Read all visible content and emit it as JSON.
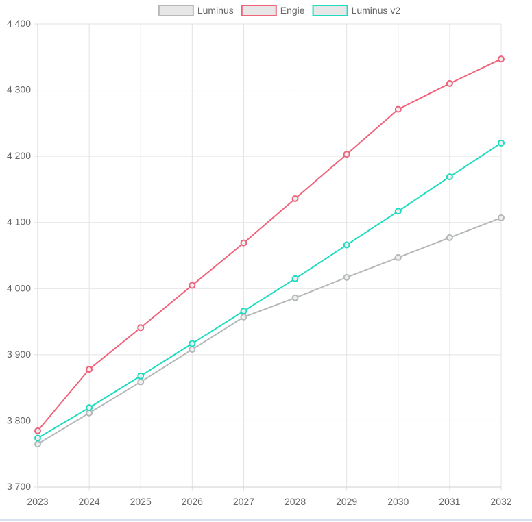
{
  "chart_data": {
    "type": "line",
    "categories": [
      "2023",
      "2024",
      "2025",
      "2026",
      "2027",
      "2028",
      "2029",
      "2030",
      "2031",
      "2032"
    ],
    "series": [
      {
        "name": "Luminus",
        "color": "#b4b8b8",
        "values": [
          3765,
          3812,
          3859,
          3908,
          3957,
          3986,
          4017,
          4047,
          4077,
          4107
        ]
      },
      {
        "name": "Engie",
        "color": "#f0627a",
        "values": [
          3785,
          3878,
          3941,
          4005,
          4069,
          4136,
          4203,
          4271,
          4310,
          4347
        ]
      },
      {
        "name": "Luminus v2",
        "color": "#1ddcc0",
        "values": [
          3774,
          3820,
          3868,
          3917,
          3966,
          4015,
          4066,
          4117,
          4169,
          4220
        ]
      }
    ],
    "ylim": [
      3700,
      4400
    ],
    "yticks": [
      "3 700",
      "3 800",
      "3 900",
      "4 000",
      "4 100",
      "4 200",
      "4 300",
      "4 400"
    ],
    "ytick_values": [
      3700,
      3800,
      3900,
      4000,
      4100,
      4200,
      4300,
      4400
    ],
    "grid": true,
    "legend_position": "top-center",
    "title": "",
    "xlabel": "",
    "ylabel": ""
  }
}
